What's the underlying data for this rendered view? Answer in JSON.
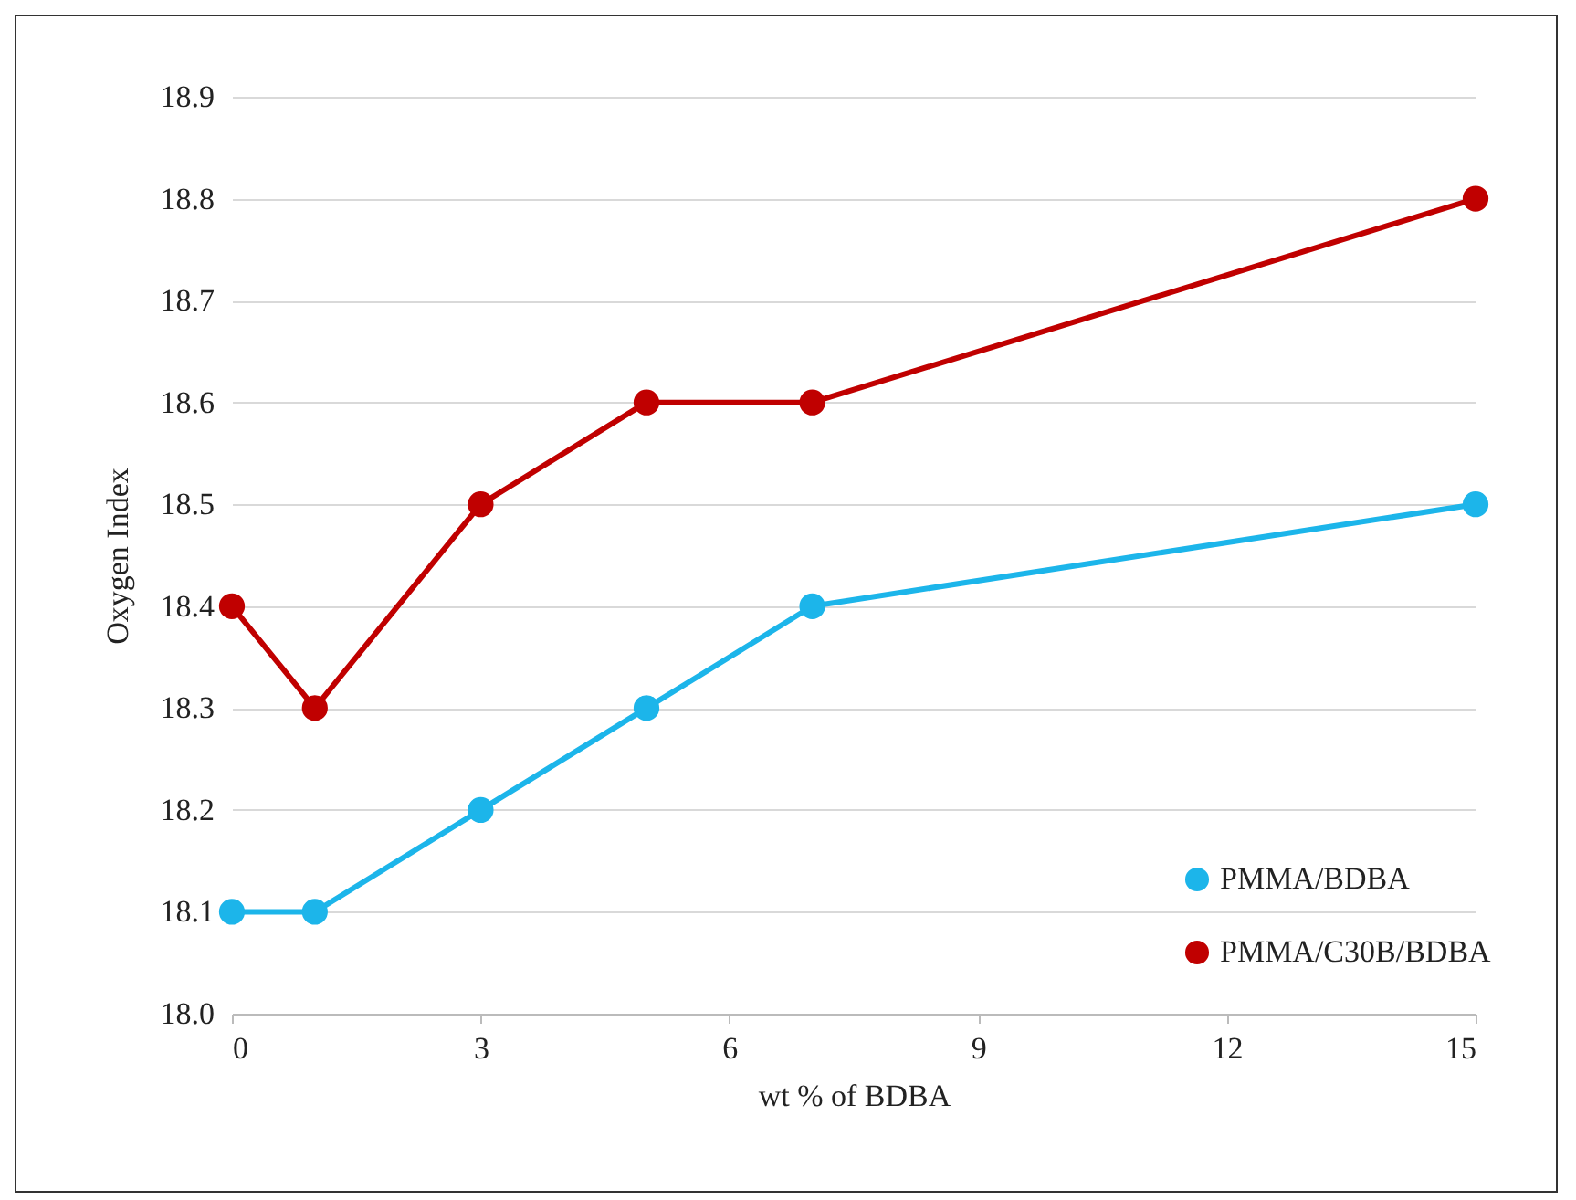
{
  "chart_data": {
    "type": "line",
    "xlabel": "wt % of BDBA",
    "ylabel": "Oxygen Index",
    "x": [
      0,
      1,
      3,
      5,
      7,
      15
    ],
    "series": [
      {
        "name": "PMMA/BDBA",
        "color": "#1cb5ea",
        "values": [
          18.1,
          18.1,
          18.2,
          18.3,
          18.4,
          18.5
        ]
      },
      {
        "name": "PMMA/C30B/BDBA",
        "color": "#c00000",
        "values": [
          18.4,
          18.3,
          18.5,
          18.6,
          18.6,
          18.8
        ]
      }
    ],
    "xlim": [
      0,
      15
    ],
    "xticks": [
      0,
      3,
      6,
      9,
      12,
      15
    ],
    "ylim": [
      18.0,
      18.9
    ],
    "yticks": [
      {
        "value": 18.0,
        "label": "18.0"
      },
      18.1,
      18.2,
      18.3,
      18.4,
      18.5,
      18.6,
      18.7,
      18.8,
      18.9
    ],
    "grid": "y",
    "legend": "bottom right",
    "marker": "circle",
    "line_style": "solid"
  }
}
